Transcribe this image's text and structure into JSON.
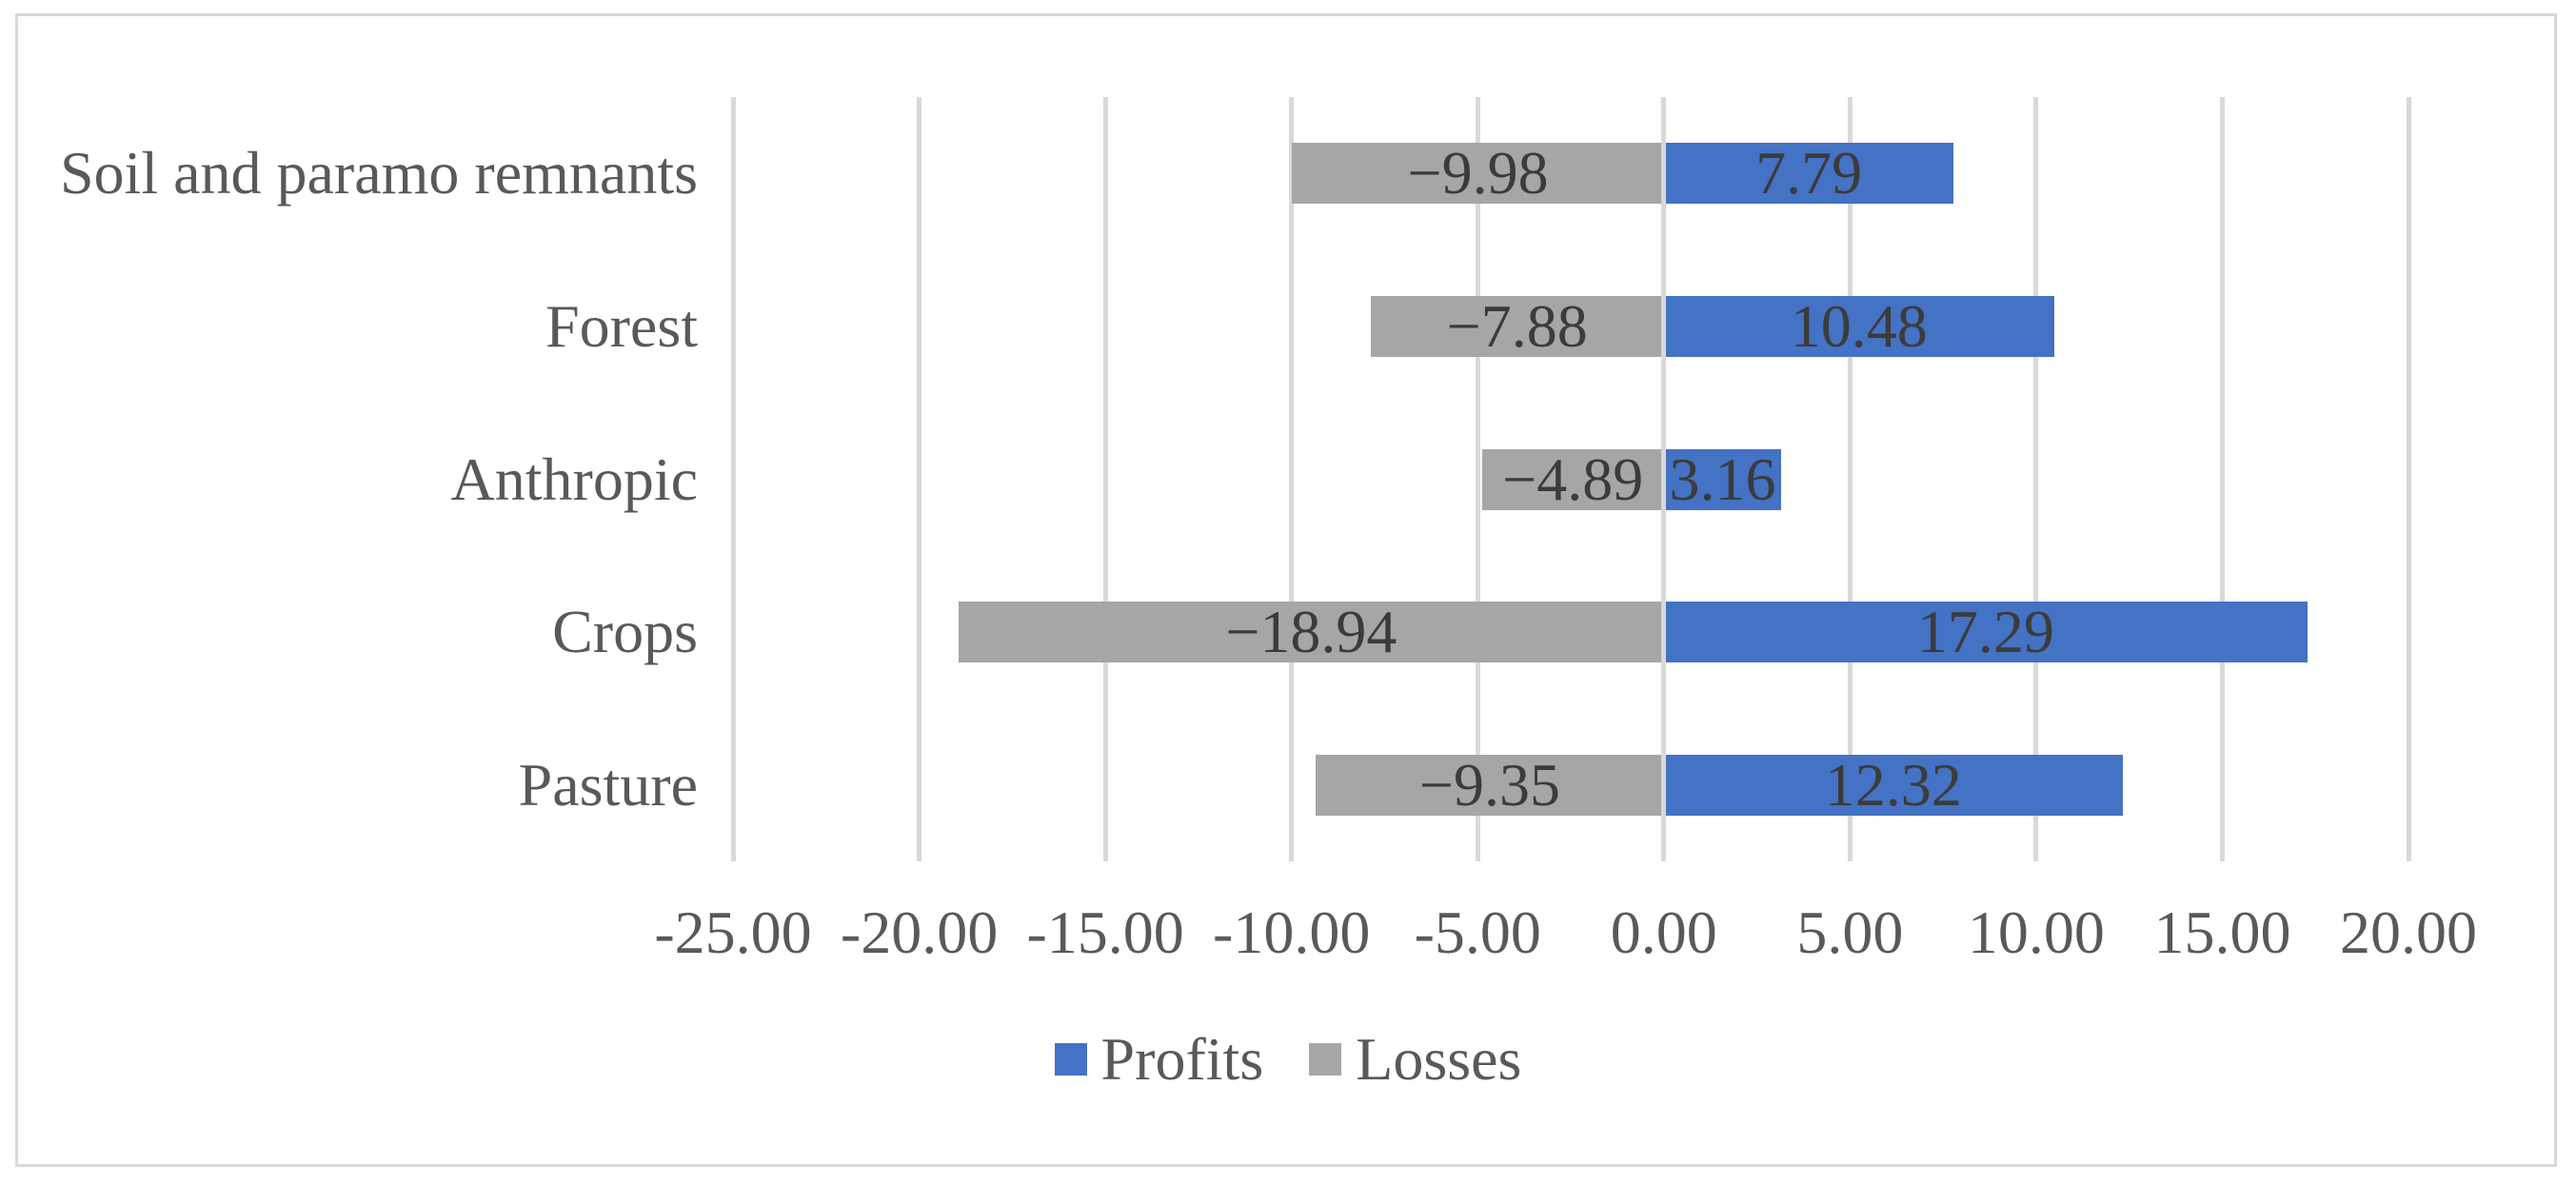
{
  "chart_data": {
    "type": "bar",
    "orientation": "horizontal",
    "title": "",
    "xlabel": "",
    "ylabel": "",
    "categories": [
      "Soil and paramo remnants",
      "Forest",
      "Anthropic",
      "Crops",
      "Pasture"
    ],
    "series": [
      {
        "name": "Profits",
        "color": "#4472C4",
        "values": [
          7.79,
          10.48,
          3.16,
          17.29,
          12.32
        ],
        "labels": [
          "7.79",
          "10.48",
          "3.16",
          "17.29",
          "12.32"
        ]
      },
      {
        "name": "Losses",
        "color": "#A6A6A6",
        "values": [
          -9.98,
          -7.88,
          -4.89,
          -18.94,
          -9.35
        ],
        "labels": [
          "−9.98",
          "−7.88",
          "−4.89",
          "−18.94",
          "−9.35"
        ]
      }
    ],
    "x_axis": {
      "min": -25,
      "max": 20,
      "step": 5,
      "tick_labels": [
        "-25.00",
        "-20.00",
        "-15.00",
        "-10.00",
        "-5.00",
        "0.00",
        "5.00",
        "10.00",
        "15.00",
        "20.00"
      ]
    },
    "grid": true,
    "legend": {
      "position": "bottom",
      "entries": [
        "Profits",
        "Losses"
      ]
    },
    "colors": {
      "gridline": "#D9D9D9",
      "chart_border": "#D9D9D9",
      "data_label_text": "#3B3B3B",
      "axis_label_text": "#595959"
    }
  }
}
